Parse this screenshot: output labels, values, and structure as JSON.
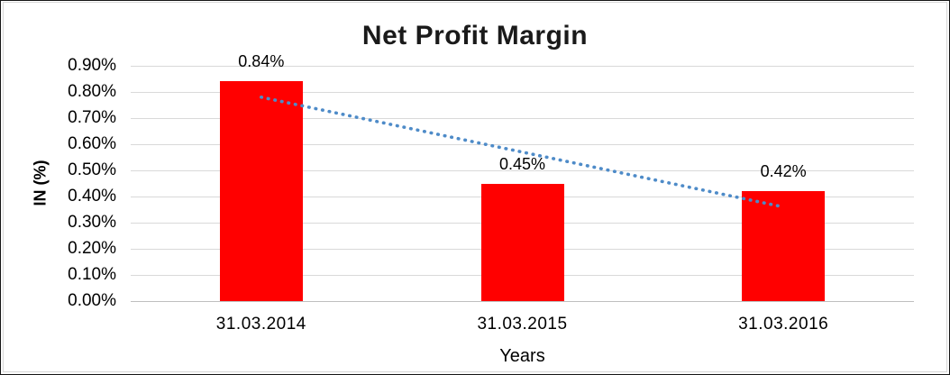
{
  "chart_data": {
    "type": "bar",
    "title": "Net Profit Margin",
    "xlabel": "Years",
    "ylabel": "IN (%)",
    "categories": [
      "31.03.2014",
      "31.03.2015",
      "31.03.2016"
    ],
    "values": [
      0.84,
      0.45,
      0.42
    ],
    "data_labels": [
      "0.84%",
      "0.45%",
      "0.42%"
    ],
    "y_ticks": [
      "0.90%",
      "0.80%",
      "0.70%",
      "0.60%",
      "0.50%",
      "0.40%",
      "0.30%",
      "0.20%",
      "0.10%",
      "0.00%"
    ],
    "ylim": [
      0,
      0.9
    ],
    "y_step": 0.1,
    "grid": true,
    "legend": false,
    "bar_color": "#ff0000",
    "trendline": {
      "type": "linear",
      "style": "dotted",
      "color": "#4e8bc8",
      "start_value": 0.78,
      "end_value": 0.36
    }
  },
  "colors": {
    "background": "#ffffff",
    "chart_border": "#d7d7d7",
    "outer_border": "#161616",
    "gridline": "#d9d9d9",
    "axis_line": "#bfbfbf",
    "text": "#000000"
  }
}
